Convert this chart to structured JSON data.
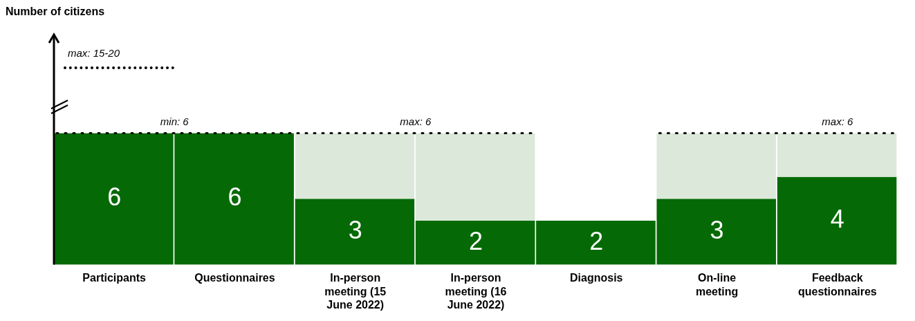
{
  "chart_data": {
    "type": "bar",
    "ylabel": "Number of citizens",
    "categories": [
      "Participants",
      "Questionnaires",
      "In-person meeting (15 June 2022)",
      "In-person meeting (16 June 2022)",
      "Diagnosis",
      "On-line meeting",
      "Feedback questionnaires"
    ],
    "stacked": true,
    "series": [
      {
        "color": "#056a05",
        "values": [
          6,
          6,
          3,
          2,
          2,
          3,
          4
        ],
        "value_labels": [
          "6",
          "6",
          "3",
          "2",
          "2",
          "3",
          "4"
        ]
      },
      {
        "color": "#dce9da",
        "values": [
          0,
          0,
          3,
          4,
          0,
          3,
          2
        ]
      }
    ],
    "ylim": [
      0,
      10.5
    ],
    "tick_labels": "x",
    "grid": false,
    "legend": false,
    "ref_lines": [
      {
        "axis": "y",
        "value": 6,
        "label": "min: 6",
        "line_style": "dotted"
      }
    ],
    "annotations": [
      "max: 6",
      "max: 6",
      "max: 15-20"
    ]
  }
}
